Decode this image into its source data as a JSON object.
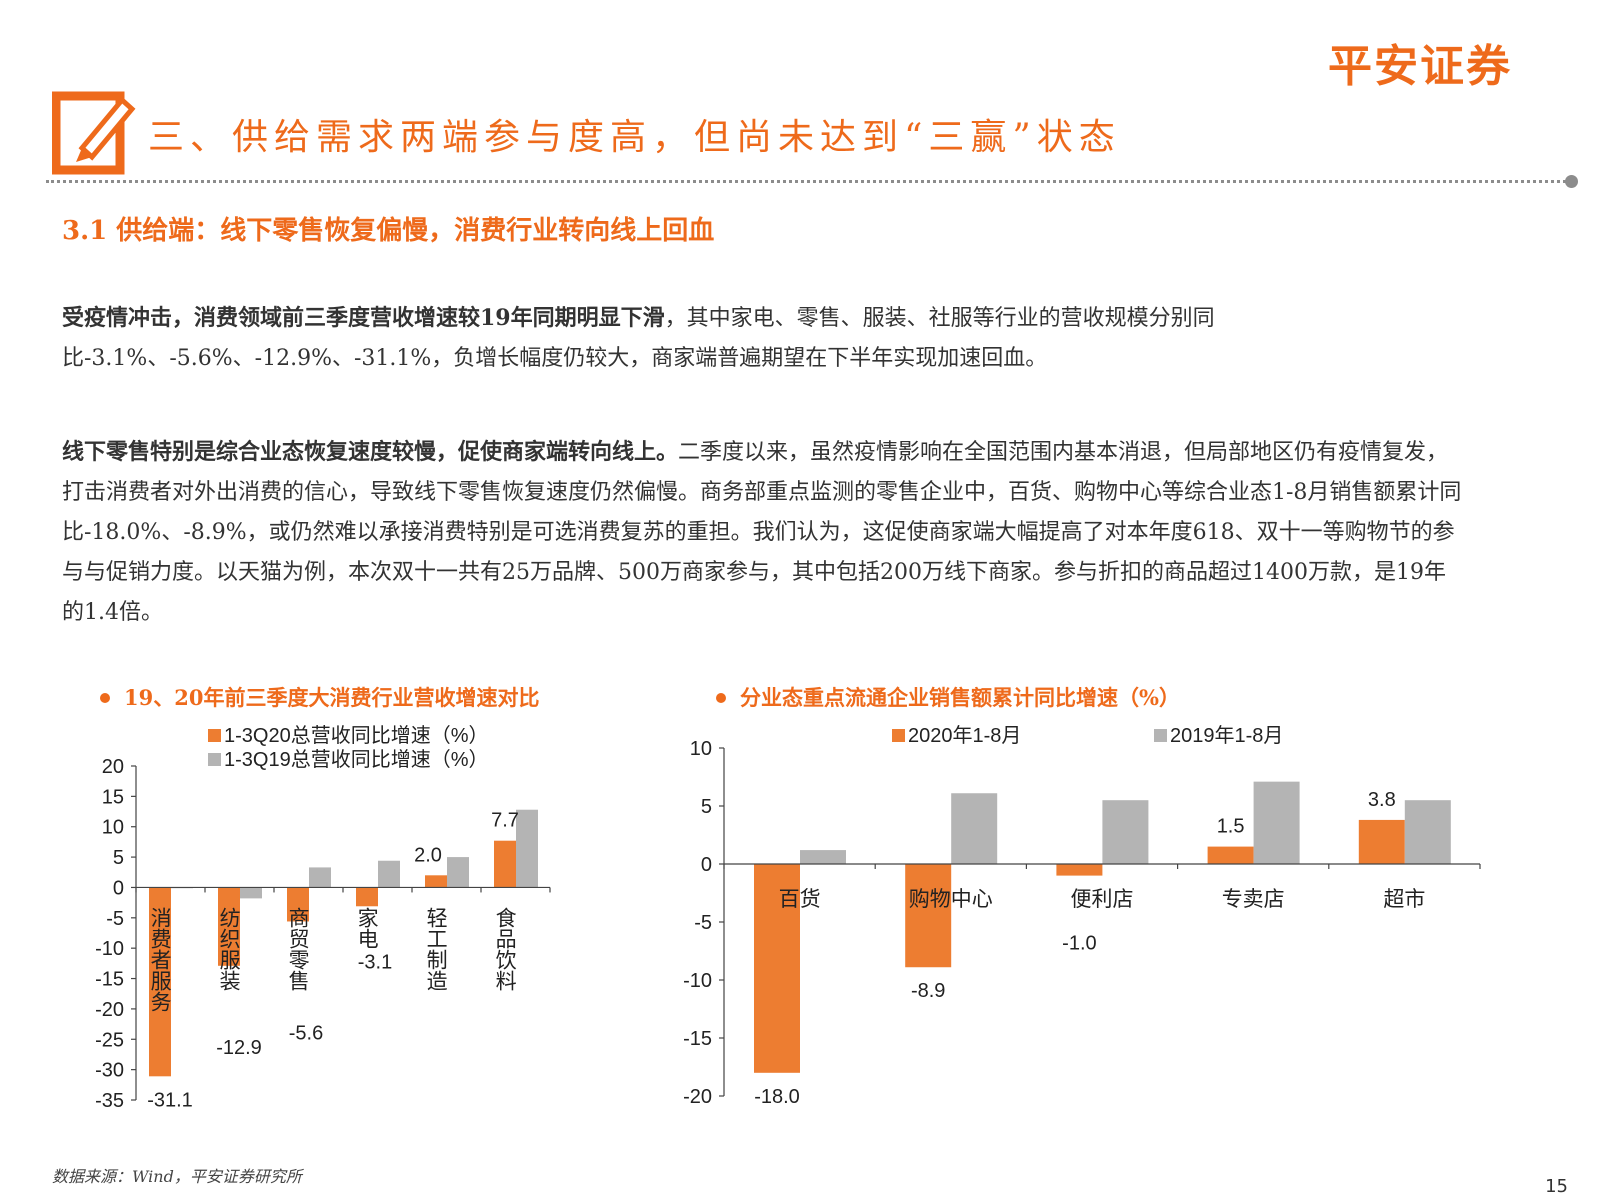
{
  "brand": {
    "logo_text": "平安证券",
    "accent_color": "#ee6a1b"
  },
  "header": {
    "icon": "edit-pencil-icon",
    "title": "三、供给需求两端参与度高，但尚未达到“三赢”状态"
  },
  "section": {
    "subtitle": "3.1 供给端：线下零售恢复偏慢，消费行业转向线上回血"
  },
  "paragraphs": [
    {
      "bold": "受疫情冲击，消费领域前三季度营收增速较19年同期明显下滑",
      "text": "，其中家电、零售、服装、社服等行业的营收规模分别同比-3.1%、-5.6%、-12.9%、-31.1%，负增长幅度仍较大，商家端普遍期望在下半年实现加速回血。"
    },
    {
      "bold": "线下零售特别是综合业态恢复速度较慢，促使商家端转向线上。",
      "text": "二季度以来，虽然疫情影响在全国范围内基本消退，但局部地区仍有疫情复发，打击消费者对外出消费的信心，导致线下零售恢复速度仍然偏慢。商务部重点监测的零售企业中，百货、购物中心等综合业态1-8月销售额累计同比-18.0%、-8.9%，或仍然难以承接消费特别是可选消费复苏的重担。我们认为，这促使商家端大幅提高了对本年度618、双十一等购物节的参与与促销力度。以天猫为例，本次双十一共有25万品牌、500万商家参与，其中包括200万线下商家。参与折扣的商品超过1400万款，是19年的1.4倍。"
    }
  ],
  "chart_data": [
    {
      "type": "bar",
      "title": "19、20年前三季度大消费行业营收增速对比",
      "categories": [
        "消费者服务",
        "纺织服装",
        "商贸零售",
        "家电",
        "轻工制造",
        "食品饮料"
      ],
      "series": [
        {
          "name": "1-3Q20总营收同比增速（%）",
          "color": "#ed7d31",
          "values": [
            -31.1,
            -12.9,
            -5.6,
            -3.1,
            2.0,
            7.7
          ]
        },
        {
          "name": "1-3Q19总营收同比增速（%）",
          "color": "#b4b4b4",
          "values": [
            0.0,
            -1.8,
            3.3,
            4.4,
            5.0,
            12.8
          ]
        }
      ],
      "data_labels": [
        "-31.1",
        "-12.9",
        "-5.6",
        "-3.1",
        "2.0",
        "7.7"
      ],
      "ylim": [
        -35,
        20
      ],
      "yticks": [
        20,
        15,
        10,
        5,
        0,
        -5,
        -10,
        -15,
        -20,
        -25,
        -30,
        -35
      ],
      "legend": "top",
      "grid": false
    },
    {
      "type": "bar",
      "title": "分业态重点流通企业销售额累计同比增速（%）",
      "categories": [
        "百货",
        "购物中心",
        "便利店",
        "专卖店",
        "超市"
      ],
      "series": [
        {
          "name": "2020年1-8月",
          "color": "#ed7d31",
          "values": [
            -18.0,
            -8.9,
            -1.0,
            1.5,
            3.8
          ]
        },
        {
          "name": "2019年1-8月",
          "color": "#b4b4b4",
          "values": [
            1.2,
            6.1,
            5.5,
            7.1,
            5.5
          ]
        }
      ],
      "data_labels": [
        "-18.0",
        "-8.9",
        "-1.0",
        "1.5",
        "3.8"
      ],
      "ylim": [
        -20,
        10
      ],
      "yticks": [
        10,
        5,
        0,
        -5,
        -10,
        -15,
        -20
      ],
      "legend": "top",
      "grid": false
    }
  ],
  "footer": {
    "source": "数据来源：Wind，平安证券研究所",
    "page_number": "15"
  }
}
